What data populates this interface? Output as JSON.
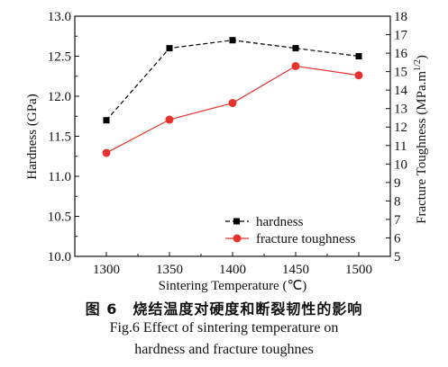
{
  "chart_data": {
    "type": "line",
    "x": [
      1300,
      1350,
      1400,
      1450,
      1500
    ],
    "xlabel": "Sintering Temperature (℃)",
    "xlim": [
      1275,
      1525
    ],
    "ylabel_left": "Hardness (GPa)",
    "ylabel_right": "Fracture Toughness (MPa.m",
    "ylabel_right_sup": "1/2",
    "ylabel_right_close": ")",
    "ylim_left": [
      10.0,
      13.0
    ],
    "ylim_right": [
      5,
      18
    ],
    "yticks_left": [
      "10.0",
      "10.5",
      "11.0",
      "11.5",
      "12.0",
      "12.5",
      "13.0"
    ],
    "yticks_right": [
      "5",
      "6",
      "7",
      "8",
      "9",
      "10",
      "11",
      "12",
      "13",
      "14",
      "15",
      "16",
      "17",
      "18"
    ],
    "xticks": [
      "1300",
      "1350",
      "1400",
      "1450",
      "1500"
    ],
    "grid": false,
    "legend_position": "bottom-right",
    "series": [
      {
        "name": "hardness",
        "axis": "left",
        "color": "#000000",
        "marker": "square",
        "values": [
          11.7,
          12.6,
          12.7,
          12.6,
          12.5
        ]
      },
      {
        "name": "fracture toughness",
        "axis": "right",
        "color": "#e8322e",
        "marker": "circle",
        "values": [
          10.6,
          12.4,
          13.3,
          15.3,
          14.8
        ]
      }
    ]
  },
  "caption": {
    "zh": "图 6　烧结温度对硬度和断裂韧性的影响",
    "en_line1": "Fig.6 Effect of sintering temperature on",
    "en_line2": "hardness and fracture toughnes"
  }
}
